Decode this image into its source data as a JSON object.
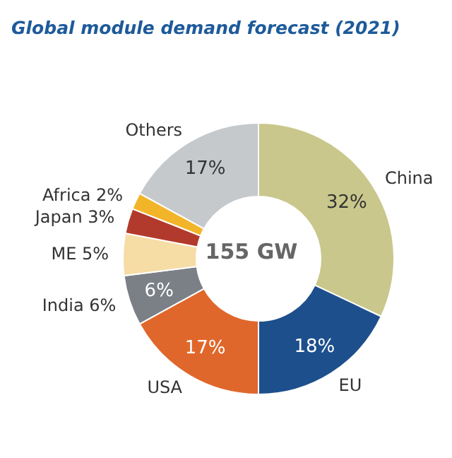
{
  "chart_data": {
    "type": "donut",
    "title": "Global module demand forecast (2021)",
    "categories": [
      "China",
      "EU",
      "USA",
      "India 6%",
      "ME 5%",
      "Japan 3%",
      "Africa 2%",
      "Others"
    ],
    "values": [
      32,
      18,
      17,
      6,
      5,
      3,
      2,
      17
    ],
    "colors": [
      "#c9c78b",
      "#1d4f8c",
      "#e0672b",
      "#7b8087",
      "#f6dca5",
      "#b23a2c",
      "#f2b52a",
      "#c5c9cc"
    ],
    "value_labels": [
      "32%",
      "18%",
      "17%",
      "6%",
      null,
      null,
      null,
      "17%"
    ],
    "annotations": [
      "155 GW"
    ]
  }
}
